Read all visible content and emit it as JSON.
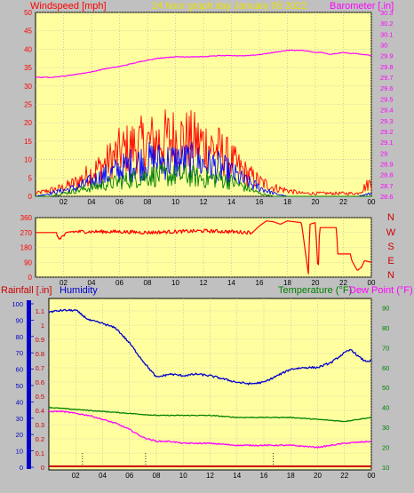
{
  "header": {
    "left_label": "Windspeed [mph]",
    "center_label": "24 hour graph day   January 05 2022",
    "right_label": "Barometer [.in]"
  },
  "colors": {
    "background": "#c0c0c0",
    "plot_bg": "#ffffa0",
    "wind": "#ff0000",
    "gust_mid": "#0000ff",
    "gust_low": "#008000",
    "barometer": "#ff00ff",
    "title": "#e8e000",
    "temperature": "#008000",
    "dewpoint": "#ff00ff",
    "humidity": "#0000cc",
    "rain": "#cc0000"
  },
  "direction_labels": [
    "N",
    "W",
    "S",
    "E",
    "N"
  ],
  "bottom_header": {
    "rain_label": "Rainfall [.in]",
    "humidity_label": "Humidity",
    "temperature_label": "Temperature (°F)",
    "dewpoint_label": "Dew Point (°F)"
  },
  "chart_data": [
    {
      "type": "line",
      "subtype": "wind_and_barometer",
      "x_ticks": [
        "02",
        "04",
        "06",
        "08",
        "10",
        "12",
        "14",
        "16",
        "18",
        "20",
        "22",
        "00"
      ],
      "ylim_left": [
        0,
        50
      ],
      "y_ticks_left": [
        "0",
        "5",
        "10",
        "15",
        "20",
        "25",
        "30",
        "35",
        "40",
        "45",
        "50"
      ],
      "ylim_right": [
        28.6,
        30.3
      ],
      "y_ticks_right": [
        "28.6",
        "28.7",
        "28.8",
        "28.9",
        "29",
        "29.1",
        "29.2",
        "29.3",
        "29.4",
        "29.5",
        "29.6",
        "29.7",
        "29.8",
        "29.9",
        "30",
        "30.1",
        "30.2",
        "30.3"
      ],
      "series": [
        {
          "role": "barometer",
          "x": [
            0,
            1,
            2,
            3,
            4,
            5,
            6,
            7,
            8,
            9,
            10,
            11,
            12,
            13,
            14,
            15,
            16,
            17,
            18,
            18.5,
            19,
            19.5,
            20,
            20.5,
            21,
            21.5,
            22,
            22.5,
            23,
            23.5,
            24
          ],
          "values": [
            29.7,
            29.7,
            29.71,
            29.73,
            29.75,
            29.78,
            29.8,
            29.83,
            29.86,
            29.88,
            29.89,
            29.89,
            29.89,
            29.9,
            29.9,
            29.9,
            29.91,
            29.93,
            29.95,
            29.95,
            29.95,
            29.94,
            29.93,
            29.93,
            29.91,
            29.92,
            29.93,
            29.92,
            29.92,
            29.91,
            29.9
          ]
        },
        {
          "role": "wind_peak",
          "x": [
            0,
            1,
            2,
            3,
            4,
            5,
            6,
            7,
            8,
            9,
            10,
            11,
            12,
            13,
            14,
            15,
            16,
            17,
            18,
            19,
            20,
            21,
            22,
            23,
            24
          ],
          "values": [
            1,
            2,
            3,
            5,
            8,
            11,
            15,
            17,
            18,
            19,
            20,
            19,
            18,
            16,
            12,
            8,
            5,
            3,
            2,
            1,
            1,
            1,
            1,
            1,
            5
          ]
        },
        {
          "role": "wind_mid",
          "x": [
            0,
            1,
            2,
            3,
            4,
            5,
            6,
            7,
            8,
            9,
            10,
            11,
            12,
            13,
            14,
            15,
            16,
            17,
            18,
            19,
            20,
            21,
            22,
            23,
            24
          ],
          "values": [
            0,
            1,
            2,
            3,
            5,
            7,
            9,
            11,
            12,
            12,
            12,
            12,
            11,
            10,
            8,
            5,
            3,
            1,
            0,
            0,
            0,
            0,
            0,
            0,
            1
          ]
        },
        {
          "role": "wind_low",
          "x": [
            0,
            1,
            2,
            3,
            4,
            5,
            6,
            7,
            8,
            9,
            10,
            11,
            12,
            13,
            14,
            15,
            16,
            17,
            18,
            19,
            20,
            21,
            22,
            23,
            24
          ],
          "values": [
            0,
            0,
            1,
            2,
            3,
            4,
            5,
            6,
            7,
            7,
            7,
            7,
            6,
            6,
            5,
            3,
            1,
            0,
            0,
            0,
            0,
            0,
            0,
            0,
            0
          ]
        }
      ]
    },
    {
      "type": "line",
      "subtype": "wind_direction",
      "x_ticks": [
        "02",
        "04",
        "06",
        "08",
        "10",
        "12",
        "14",
        "16",
        "18",
        "20",
        "22",
        "00"
      ],
      "ylim": [
        0,
        360
      ],
      "y_ticks": [
        "0",
        "90",
        "180",
        "270",
        "360"
      ],
      "series": [
        {
          "role": "direction",
          "x": [
            0,
            1.5,
            1.6,
            2.5,
            4,
            6,
            8,
            10,
            12,
            14,
            15.5,
            16,
            16.5,
            17,
            17.5,
            18,
            19,
            19.5,
            19.6,
            20,
            20.2,
            20.3,
            21.5,
            21.6,
            22.5,
            22.6,
            23,
            23.3,
            23.5,
            24
          ],
          "values": [
            270,
            270,
            230,
            275,
            275,
            275,
            270,
            275,
            280,
            275,
            270,
            310,
            340,
            335,
            320,
            340,
            330,
            20,
            320,
            330,
            20,
            300,
            300,
            140,
            140,
            100,
            40,
            60,
            100,
            90
          ]
        }
      ]
    },
    {
      "type": "line",
      "subtype": "temperature_humidity_rain",
      "x_ticks": [
        "02",
        "04",
        "06",
        "08",
        "10",
        "12",
        "14",
        "16",
        "18",
        "20",
        "22",
        "00"
      ],
      "ylim_rain": [
        0,
        1.2
      ],
      "y_ticks_rain": [
        "0",
        "0.1",
        "0.2",
        "0.3",
        "0.4",
        "0.5",
        "0.6",
        "0.7",
        "0.8",
        "0.9",
        "1",
        "1.1"
      ],
      "ylim_humidity": [
        0,
        100
      ],
      "y_ticks_humidity": [
        "0",
        "10",
        "20",
        "30",
        "40",
        "50",
        "60",
        "70",
        "80",
        "90",
        "100"
      ],
      "ylim_temperature": [
        10,
        95
      ],
      "y_ticks_temperature": [
        "10",
        "20",
        "30",
        "40",
        "50",
        "60",
        "70",
        "80",
        "90"
      ],
      "series": [
        {
          "role": "humidity",
          "x": [
            0,
            1,
            2,
            3,
            4,
            5,
            6,
            7,
            8,
            9,
            10,
            11,
            12,
            13,
            14,
            15,
            16,
            17,
            18,
            19,
            20,
            21,
            22,
            22.5,
            23,
            23.5,
            24
          ],
          "values": [
            95,
            96,
            96,
            90,
            88,
            85,
            76,
            65,
            55,
            57,
            56,
            57,
            56,
            54,
            52,
            51,
            52,
            56,
            60,
            61,
            61,
            64,
            70,
            72,
            68,
            65,
            65
          ]
        },
        {
          "role": "temperature",
          "x": [
            0,
            2,
            4,
            6,
            8,
            10,
            12,
            14,
            16,
            18,
            20,
            22,
            23,
            24
          ],
          "values": [
            40,
            39,
            38,
            37,
            36,
            36,
            36,
            35,
            35,
            35,
            34,
            33,
            34,
            35
          ]
        },
        {
          "role": "dewpoint",
          "x": [
            0,
            1,
            2,
            3,
            4,
            5,
            6,
            7,
            8,
            9,
            10,
            12,
            14,
            16,
            18,
            20,
            22,
            24
          ],
          "values": [
            38,
            38,
            37,
            36,
            34,
            32,
            29,
            25,
            23,
            23,
            22,
            22,
            21,
            21,
            21,
            20,
            22,
            23
          ]
        },
        {
          "role": "rainfall",
          "x": [
            0,
            24
          ],
          "values": [
            0,
            0
          ]
        }
      ]
    }
  ]
}
